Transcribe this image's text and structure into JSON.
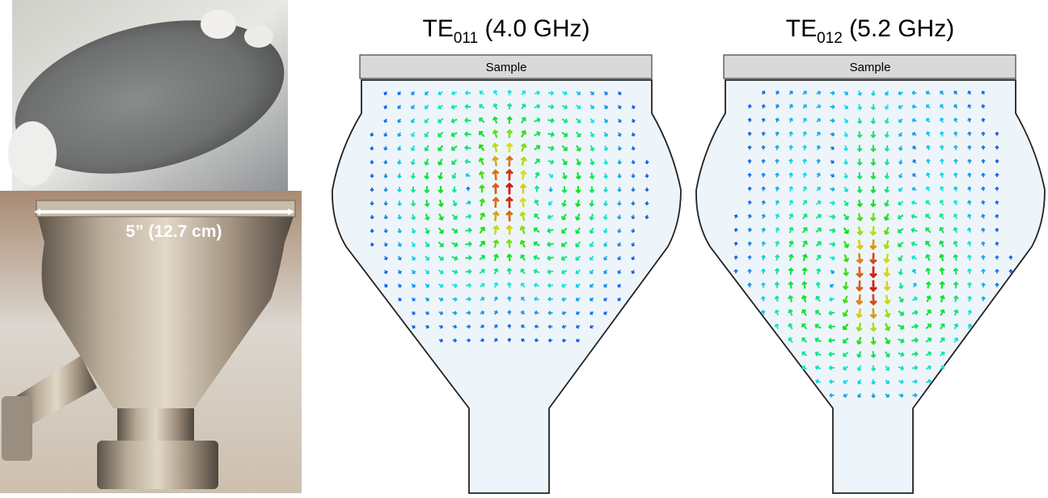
{
  "photo": {
    "dimension_label": "5” (12.7 cm)"
  },
  "simulations": [
    {
      "mode": "TE",
      "subscript": "011",
      "frequency": "(4.0 GHz)",
      "sample_label": "Sample"
    },
    {
      "mode": "TE",
      "subscript": "012",
      "frequency": "(5.2 GHz)",
      "sample_label": "Sample"
    }
  ]
}
